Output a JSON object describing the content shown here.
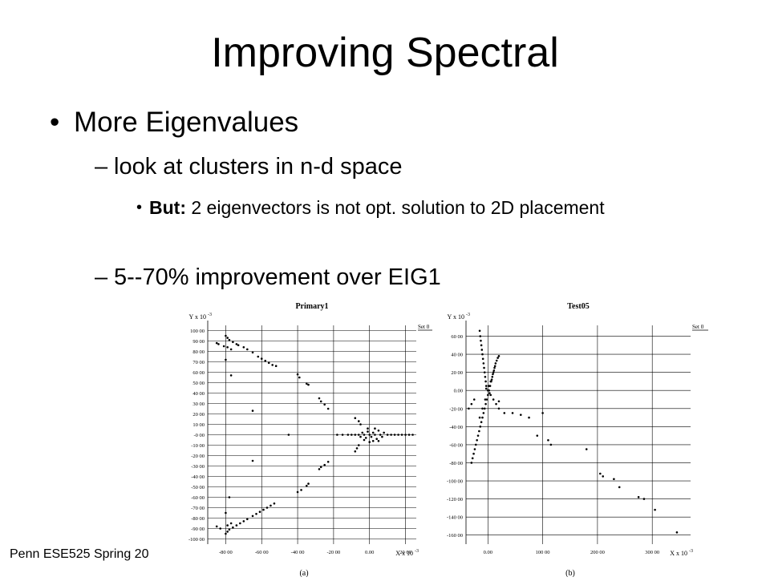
{
  "slide": {
    "title": "Improving Spectral",
    "bullet1": "More Eigenvalues",
    "bullet2": "look at clusters in n-d space",
    "bullet3_bold": "But:",
    "bullet3_text": "2 eigenvectors is not opt. solution to 2D placement",
    "bullet4": "5--70% improvement over EIG1",
    "footer": "Penn ESE525 Spring 20"
  },
  "markers": {
    "dash": "–",
    "dot": "•"
  },
  "chart_data": [
    {
      "type": "scatter",
      "title": "Primary1",
      "caption": "(a)",
      "ylabel": "Y x 10",
      "xlabel": "X x 10",
      "axis_exponent": "-3",
      "legend": "Set 0",
      "legend_position": "top-right",
      "grid": true,
      "xlim": [
        -90000,
        26000
      ],
      "ylim": [
        -105000,
        105000
      ],
      "x_ticks": [
        "-80 00",
        "-60 00",
        "-40 00",
        "-20 00",
        "0.00",
        "20 00"
      ],
      "x_tick_values": [
        -80000,
        -60000,
        -40000,
        -20000,
        0,
        20000
      ],
      "y_ticks": [
        "100 00",
        "90 00",
        "80 00",
        "70 00",
        "60 00",
        "50 00",
        "40 00",
        "30 00",
        "20 00",
        "10 00",
        "-0 00",
        "-10 00",
        "-20 00",
        "-30 00",
        "-40 00",
        "-50 00",
        "-60 00",
        "-70 00",
        "-80 00",
        "-90 00",
        "-100 00"
      ],
      "y_tick_values": [
        100000,
        90000,
        80000,
        70000,
        60000,
        50000,
        40000,
        30000,
        20000,
        10000,
        0,
        -10000,
        -20000,
        -30000,
        -40000,
        -50000,
        -60000,
        -70000,
        -80000,
        -90000,
        -100000
      ],
      "points": [
        [
          -80000,
          95000
        ],
        [
          -79000,
          93000
        ],
        [
          -78000,
          91000
        ],
        [
          -76000,
          89000
        ],
        [
          -74000,
          87000
        ],
        [
          -73000,
          86000
        ],
        [
          -70000,
          84000
        ],
        [
          -68000,
          82000
        ],
        [
          -65000,
          79000
        ],
        [
          -62000,
          75000
        ],
        [
          -60000,
          73000
        ],
        [
          -58000,
          71000
        ],
        [
          -56000,
          69000
        ],
        [
          -54000,
          67000
        ],
        [
          -52000,
          66000
        ],
        [
          -85000,
          88000
        ],
        [
          -84000,
          87000
        ],
        [
          -81000,
          85000
        ],
        [
          -79000,
          84000
        ],
        [
          -77000,
          82000
        ],
        [
          -80000,
          72000
        ],
        [
          -40000,
          58000
        ],
        [
          -39000,
          55000
        ],
        [
          -35000,
          49000
        ],
        [
          -34000,
          48000
        ],
        [
          -28000,
          35000
        ],
        [
          -27000,
          32000
        ],
        [
          -25000,
          29000
        ],
        [
          -23000,
          25000
        ],
        [
          -77000,
          57000
        ],
        [
          -65000,
          23000
        ],
        [
          -80000,
          -95000
        ],
        [
          -79000,
          -93000
        ],
        [
          -78000,
          -91000
        ],
        [
          -76000,
          -89000
        ],
        [
          -74000,
          -87000
        ],
        [
          -72000,
          -85000
        ],
        [
          -70000,
          -83000
        ],
        [
          -68000,
          -81000
        ],
        [
          -65000,
          -78000
        ],
        [
          -63000,
          -76000
        ],
        [
          -61000,
          -74000
        ],
        [
          -59000,
          -72000
        ],
        [
          -57000,
          -70000
        ],
        [
          -55000,
          -68000
        ],
        [
          -53000,
          -66000
        ],
        [
          -85000,
          -88000
        ],
        [
          -83000,
          -90000
        ],
        [
          -79000,
          -87000
        ],
        [
          -77000,
          -85000
        ],
        [
          -80000,
          -75000
        ],
        [
          -78000,
          -60000
        ],
        [
          -40000,
          -55000
        ],
        [
          -38000,
          -53000
        ],
        [
          -35000,
          -49000
        ],
        [
          -34000,
          -47000
        ],
        [
          -28000,
          -33000
        ],
        [
          -27000,
          -31000
        ],
        [
          -25000,
          -29000
        ],
        [
          -23000,
          -26000
        ],
        [
          -65000,
          -25000
        ],
        [
          -18000,
          0
        ],
        [
          -15000,
          0
        ],
        [
          -12000,
          0
        ],
        [
          -10000,
          0
        ],
        [
          -8000,
          0
        ],
        [
          -6000,
          0
        ],
        [
          -5000,
          -2000
        ],
        [
          -4000,
          2000
        ],
        [
          -3000,
          0
        ],
        [
          -2000,
          -3000
        ],
        [
          -1000,
          3000
        ],
        [
          0,
          0
        ],
        [
          1000,
          -2000
        ],
        [
          2000,
          2000
        ],
        [
          3000,
          0
        ],
        [
          4000,
          -4000
        ],
        [
          5000,
          4000
        ],
        [
          6000,
          0
        ],
        [
          7000,
          -2000
        ],
        [
          8000,
          2000
        ],
        [
          10000,
          0
        ],
        [
          12000,
          0
        ],
        [
          14000,
          0
        ],
        [
          16000,
          0
        ],
        [
          18000,
          0
        ],
        [
          20000,
          0
        ],
        [
          22000,
          0
        ],
        [
          24000,
          0
        ],
        [
          -6000,
          -10000
        ],
        [
          -7000,
          -13000
        ],
        [
          -8000,
          -16000
        ],
        [
          -5000,
          10000
        ],
        [
          -6000,
          13000
        ],
        [
          -8000,
          16000
        ],
        [
          0,
          -7000
        ],
        [
          2000,
          -6000
        ],
        [
          -1000,
          6000
        ],
        [
          3000,
          6000
        ],
        [
          -3000,
          -5000
        ],
        [
          5000,
          -6000
        ],
        [
          -45000,
          0
        ]
      ]
    },
    {
      "type": "scatter",
      "title": "Test05",
      "caption": "(b)",
      "ylabel": "Y x 10",
      "xlabel": "X x 10",
      "axis_exponent": "-3",
      "legend": "Set 0",
      "legend_position": "top-right",
      "grid": true,
      "xlim": [
        -40000,
        370000
      ],
      "ylim": [
        -170000,
        72000
      ],
      "x_ticks": [
        "0.00",
        "100 00",
        "200 00",
        "300 00"
      ],
      "x_tick_values": [
        0,
        100000,
        200000,
        300000
      ],
      "y_ticks": [
        "60 00",
        "40 00",
        "20 00",
        "0.00",
        "-20 00",
        "-40 00",
        "-60 00",
        "-80 00",
        "-100 00",
        "-120 00",
        "-140 00",
        "-160 00"
      ],
      "y_tick_values": [
        60000,
        40000,
        20000,
        0,
        -20000,
        -40000,
        -60000,
        -80000,
        -100000,
        -120000,
        -140000,
        -160000
      ],
      "points": [
        [
          -30000,
          -80000
        ],
        [
          -28000,
          -75000
        ],
        [
          -26000,
          -70000
        ],
        [
          -24000,
          -65000
        ],
        [
          -22000,
          -60000
        ],
        [
          -20000,
          -55000
        ],
        [
          -18000,
          -50000
        ],
        [
          -16000,
          -45000
        ],
        [
          -14000,
          -40000
        ],
        [
          -12000,
          -35000
        ],
        [
          -10000,
          -30000
        ],
        [
          -8000,
          -25000
        ],
        [
          -6000,
          -20000
        ],
        [
          -4000,
          -15000
        ],
        [
          -2000,
          -10000
        ],
        [
          0,
          -5000
        ],
        [
          2000,
          0
        ],
        [
          4000,
          5000
        ],
        [
          6000,
          10000
        ],
        [
          8000,
          15000
        ],
        [
          10000,
          20000
        ],
        [
          12000,
          25000
        ],
        [
          14000,
          30000
        ],
        [
          16000,
          33000
        ],
        [
          18000,
          36000
        ],
        [
          20000,
          38000
        ],
        [
          -15000,
          -30000
        ],
        [
          -10000,
          -20000
        ],
        [
          -5000,
          -10000
        ],
        [
          0,
          0
        ],
        [
          2000,
          5000
        ],
        [
          5000,
          10000
        ],
        [
          -3000,
          2000
        ],
        [
          3000,
          -3000
        ],
        [
          7000,
          12000
        ],
        [
          9000,
          18000
        ],
        [
          11000,
          22000
        ],
        [
          13000,
          27000
        ],
        [
          -15000,
          66000
        ],
        [
          -14000,
          60000
        ],
        [
          -13000,
          55000
        ],
        [
          -12000,
          50000
        ],
        [
          -11000,
          45000
        ],
        [
          -10000,
          40000
        ],
        [
          -9000,
          35000
        ],
        [
          -8000,
          30000
        ],
        [
          -7000,
          25000
        ],
        [
          -6000,
          20000
        ],
        [
          -5000,
          15000
        ],
        [
          -4000,
          10000
        ],
        [
          -3000,
          5000
        ],
        [
          5000,
          -5000
        ],
        [
          10000,
          -10000
        ],
        [
          15000,
          -15000
        ],
        [
          20000,
          -20000
        ],
        [
          30000,
          -25000
        ],
        [
          45000,
          -25000
        ],
        [
          60000,
          -27000
        ],
        [
          75000,
          -30000
        ],
        [
          20000,
          -12000
        ],
        [
          -35000,
          -20000
        ],
        [
          -30000,
          -15000
        ],
        [
          -25000,
          -10000
        ],
        [
          100000,
          -25000
        ],
        [
          90000,
          -50000
        ],
        [
          110000,
          -55000
        ],
        [
          115000,
          -60000
        ],
        [
          180000,
          -65000
        ],
        [
          205000,
          -92000
        ],
        [
          210000,
          -95000
        ],
        [
          230000,
          -98000
        ],
        [
          240000,
          -107000
        ],
        [
          275000,
          -118000
        ],
        [
          285000,
          -120000
        ],
        [
          305000,
          -132000
        ],
        [
          345000,
          -157000
        ]
      ]
    }
  ]
}
